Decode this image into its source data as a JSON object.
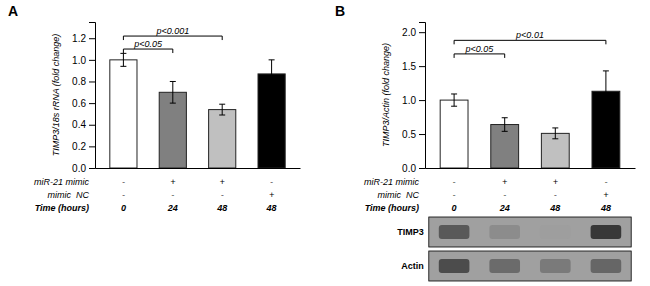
{
  "chart_data": [
    {
      "type": "bar",
      "label": "A",
      "ylabel": "TIMP3/18s rRNA (fold change)",
      "categories": [
        null,
        null,
        null,
        null
      ],
      "values": [
        1.0,
        0.7,
        0.54,
        0.87
      ],
      "errors": [
        0.06,
        0.1,
        0.05,
        0.13
      ],
      "colors": [
        "white",
        "#808080",
        "#c0c0c0",
        "black"
      ],
      "ylim": [
        0,
        1.35
      ],
      "yticks": [
        {
          "value": 0.0,
          "label": "0.0"
        },
        0.2,
        0.4,
        0.6,
        0.8,
        {
          "value": 1.0,
          "label": "1.0"
        },
        1.2
      ],
      "grid": false,
      "annotations": [
        {
          "text": "p<0.05",
          "x1": 0,
          "x2": 1,
          "y": 1.1
        },
        {
          "text": "p<0.001",
          "x1": 0,
          "x2": 2,
          "y": 1.22
        }
      ],
      "rows": [
        {
          "label": "miR-21 mimic",
          "values": [
            "-",
            "+",
            "+",
            "-"
          ]
        },
        {
          "label": "mimic  NC",
          "values": [
            "-",
            "-",
            "-",
            "+"
          ]
        },
        {
          "label": "Time (hours)",
          "values": [
            "0",
            "24",
            "48",
            "48"
          ]
        }
      ]
    },
    {
      "type": "bar",
      "label": "B",
      "ylabel": "TIMP3/Actin (fold change)",
      "categories": [
        null,
        null,
        null,
        null
      ],
      "values": [
        1.0,
        0.64,
        0.51,
        1.13
      ],
      "errors": [
        0.09,
        0.1,
        0.08,
        0.3
      ],
      "colors": [
        "white",
        "#808080",
        "#c0c0c0",
        "black"
      ],
      "ylim": [
        0,
        2.15
      ],
      "yticks": [
        {
          "value": 0.0,
          "label": "0.0"
        },
        0.5,
        {
          "value": 1.0,
          "label": "1.0"
        },
        1.5,
        {
          "value": 2.0,
          "label": "2.0"
        }
      ],
      "grid": false,
      "annotations": [
        {
          "text": "p<0.05",
          "x1": 0,
          "x2": 1,
          "y": 1.68
        },
        {
          "text": "p<0.01",
          "x1": 0,
          "x2": 3,
          "y": 1.88
        }
      ],
      "rows": [
        {
          "label": "miR-21 mimic",
          "values": [
            "-",
            "+",
            "+",
            "-"
          ]
        },
        {
          "label": "mimic  NC",
          "values": [
            "-",
            "-",
            "-",
            "+"
          ]
        },
        {
          "label": "Time (hours)",
          "values": [
            "0",
            "24",
            "48",
            "48"
          ]
        }
      ],
      "blot": {
        "background": "#a0a0a0",
        "rows": [
          {
            "label": "TIMP3",
            "intensities": [
              0.65,
              0.45,
              0.38,
              0.78
            ]
          },
          {
            "label": "Actin",
            "intensities": [
              0.7,
              0.58,
              0.52,
              0.6
            ]
          }
        ]
      }
    }
  ]
}
